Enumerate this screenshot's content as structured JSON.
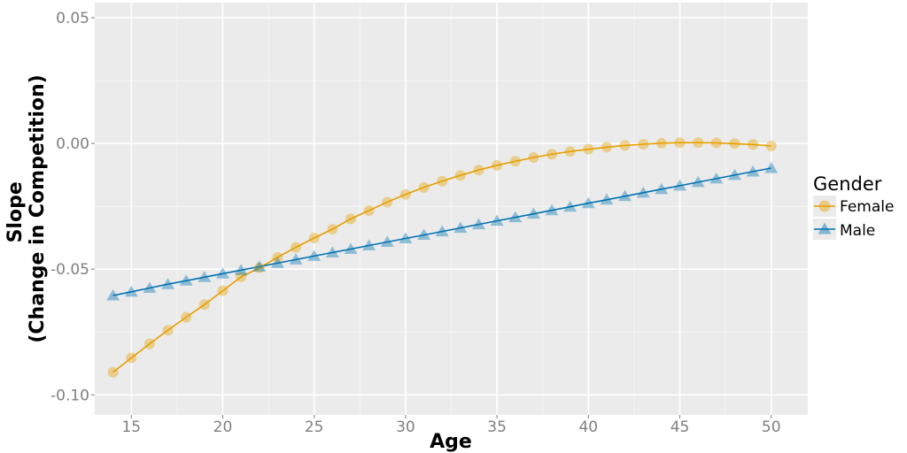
{
  "chart_data": {
    "type": "line",
    "xlabel": "Age",
    "ylabel_line1": "Slope",
    "ylabel_line2": "(Change in Competition)",
    "xlim": [
      13,
      52
    ],
    "ylim": [
      -0.108,
      0.056
    ],
    "x_ticks": [
      15,
      20,
      25,
      30,
      35,
      40,
      45,
      50
    ],
    "y_ticks": [
      0.05,
      0.0,
      -0.05,
      -0.1
    ],
    "y_tick_labels": [
      "0.05",
      "0.00",
      "-0.05",
      "-0.10"
    ],
    "grid": true,
    "legend": {
      "title": "Gender",
      "position": "right"
    },
    "x": [
      14,
      15,
      16,
      17,
      18,
      19,
      20,
      21,
      22,
      23,
      24,
      25,
      26,
      27,
      28,
      29,
      30,
      31,
      32,
      33,
      34,
      35,
      36,
      37,
      38,
      39,
      40,
      41,
      42,
      43,
      44,
      45,
      46,
      47,
      48,
      49,
      50
    ],
    "series": [
      {
        "name": "Female",
        "marker": "circle",
        "color": "#e69f00",
        "values": [
          -0.091,
          -0.0853,
          -0.0797,
          -0.0743,
          -0.0691,
          -0.0641,
          -0.0586,
          -0.0531,
          -0.0495,
          -0.0453,
          -0.0413,
          -0.0376,
          -0.0341,
          -0.03,
          -0.0267,
          -0.0233,
          -0.0203,
          -0.0175,
          -0.015,
          -0.0127,
          -0.0106,
          -0.0087,
          -0.0071,
          -0.0056,
          -0.0043,
          -0.0032,
          -0.0023,
          -0.0015,
          -0.0008,
          -0.0003,
          0.0001,
          0.0003,
          0.0003,
          0.0002,
          -0.0001,
          -0.0004,
          -0.001
        ]
      },
      {
        "name": "Male",
        "marker": "triangle",
        "color": "#0072b2",
        "values": [
          -0.0605,
          -0.059,
          -0.0575,
          -0.056,
          -0.0546,
          -0.0532,
          -0.0518,
          -0.0504,
          -0.049,
          -0.0476,
          -0.0462,
          -0.0448,
          -0.0434,
          -0.042,
          -0.0406,
          -0.0392,
          -0.0378,
          -0.0364,
          -0.035,
          -0.0336,
          -0.0322,
          -0.0308,
          -0.0294,
          -0.028,
          -0.0266,
          -0.0252,
          -0.0238,
          -0.0224,
          -0.021,
          -0.0196,
          -0.0182,
          -0.0168,
          -0.0154,
          -0.014,
          -0.0126,
          -0.0112,
          -0.0098
        ]
      }
    ]
  }
}
